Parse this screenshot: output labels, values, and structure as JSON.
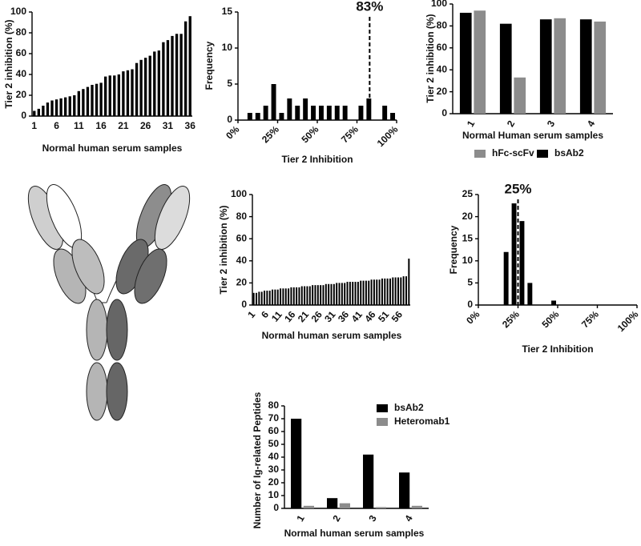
{
  "chart_data": [
    {
      "type": "bar",
      "x_label": "Normal human serum samples",
      "y_label": "Tier 2 inhibition (%)",
      "categories": [
        "1",
        null,
        null,
        null,
        null,
        "6",
        null,
        null,
        null,
        null,
        "11",
        null,
        null,
        null,
        null,
        "16",
        null,
        null,
        null,
        null,
        "21",
        null,
        null,
        null,
        null,
        "26",
        null,
        null,
        null,
        null,
        "31",
        null,
        null,
        null,
        null,
        "36"
      ],
      "values": [
        5,
        7,
        10,
        13,
        15,
        16,
        17,
        18,
        19,
        20,
        24,
        26,
        28,
        30,
        31,
        32,
        38,
        39,
        39,
        40,
        43,
        44,
        45,
        51,
        54,
        56,
        58,
        62,
        63,
        71,
        73,
        77,
        79,
        79,
        91,
        96
      ],
      "color": "#000000",
      "ylim": [
        0,
        100
      ],
      "yticks": [
        0,
        20,
        40,
        60,
        80,
        100
      ]
    },
    {
      "type": "histogram",
      "x_label": "Tier 2 Inhibition",
      "y_label": "Frequency",
      "bins": [
        0,
        5,
        10,
        15,
        20,
        25,
        30,
        35,
        40,
        45,
        50,
        55,
        60,
        65,
        70,
        75,
        80,
        85,
        90,
        95,
        100
      ],
      "values": [
        0,
        1,
        1,
        2,
        5,
        1,
        3,
        2,
        3,
        2,
        2,
        2,
        2,
        2,
        0,
        2,
        3,
        0,
        2,
        1
      ],
      "color": "#000000",
      "xlim": [
        0,
        100
      ],
      "xticks": [
        {
          "value": 0,
          "label": "0%"
        },
        {
          "value": 25,
          "label": "25%"
        },
        {
          "value": 50,
          "label": "50%"
        },
        {
          "value": 75,
          "label": "75%"
        },
        {
          "value": 100,
          "label": "100%"
        }
      ],
      "ylim": [
        0,
        15
      ],
      "yticks": [
        0,
        5,
        10,
        15
      ],
      "annotation": {
        "text": "83%",
        "x": 83
      }
    },
    {
      "type": "bar",
      "x_label": "Normal Human serum samples",
      "y_label": "Tier 2 inhibition (%)",
      "categories": [
        "1",
        "2",
        "3",
        "4"
      ],
      "series": [
        {
          "name": "bsAb2",
          "color": "#000000",
          "values": [
            92,
            82,
            86,
            86
          ]
        },
        {
          "name": "hFc-scFv",
          "color": "#8c8c8c",
          "values": [
            94,
            33,
            87,
            84
          ]
        }
      ],
      "ylim": [
        0,
        100
      ],
      "yticks": [
        0,
        20,
        40,
        60,
        80,
        100
      ],
      "legend": "bottom"
    },
    {
      "type": "bar",
      "x_label": "Normal human serum samples",
      "y_label": "Tier 2 inhibition (%)",
      "categories": [
        "1",
        null,
        null,
        null,
        null,
        "6",
        null,
        null,
        null,
        null,
        "11",
        null,
        null,
        null,
        null,
        "16",
        null,
        null,
        null,
        null,
        "21",
        null,
        null,
        null,
        null,
        "26",
        null,
        null,
        null,
        null,
        "31",
        null,
        null,
        null,
        null,
        "36",
        null,
        null,
        null,
        null,
        "41",
        null,
        null,
        null,
        null,
        "46",
        null,
        null,
        null,
        null,
        "51",
        null,
        null,
        null,
        null,
        "56",
        null,
        null,
        null
      ],
      "values": [
        11,
        11,
        12,
        12,
        13,
        13,
        13,
        14,
        14,
        14,
        15,
        15,
        15,
        15,
        16,
        16,
        16,
        16,
        17,
        17,
        17,
        17,
        18,
        18,
        18,
        18,
        18,
        19,
        19,
        19,
        19,
        20,
        20,
        20,
        20,
        21,
        21,
        21,
        21,
        21,
        22,
        22,
        22,
        22,
        23,
        23,
        23,
        23,
        24,
        24,
        24,
        24,
        25,
        25,
        25,
        25,
        26,
        26,
        42
      ],
      "color": "#000000",
      "ylim": [
        0,
        100
      ],
      "yticks": [
        0,
        20,
        40,
        60,
        80,
        100
      ]
    },
    {
      "type": "histogram",
      "x_label": "Tier 2 Inhibition",
      "y_label": "Frequency",
      "bins": [
        0,
        5,
        10,
        15,
        20,
        25,
        30,
        35,
        40,
        45,
        50,
        55,
        60,
        65,
        70,
        75,
        80,
        85,
        90,
        95,
        100
      ],
      "values": [
        0,
        0,
        0,
        12,
        23,
        19,
        5,
        0,
        0,
        1,
        0,
        0,
        0,
        0,
        0,
        0,
        0,
        0,
        0,
        0
      ],
      "color": "#000000",
      "xlim": [
        0,
        100
      ],
      "xticks": [
        {
          "value": 0,
          "label": "0%"
        },
        {
          "value": 25,
          "label": "25%"
        },
        {
          "value": 50,
          "label": "50%"
        },
        {
          "value": 75,
          "label": "75%"
        },
        {
          "value": 100,
          "label": "100%"
        }
      ],
      "ylim": [
        0,
        25
      ],
      "yticks": [
        0,
        5,
        10,
        15,
        20,
        25
      ],
      "annotation": {
        "text": "25%",
        "x": 25
      }
    },
    {
      "type": "bar",
      "x_label": "Normal human serum samples",
      "y_label": "Number of Ig-related Peptides",
      "categories": [
        "1",
        "2",
        "3",
        "4"
      ],
      "series": [
        {
          "name": "bsAb2",
          "color": "#000000",
          "values": [
            70,
            8,
            42,
            28
          ]
        },
        {
          "name": "Heteromab1",
          "color": "#8c8c8c",
          "values": [
            2,
            4,
            1,
            2
          ]
        }
      ],
      "ylim": [
        0,
        80
      ],
      "yticks": [
        0,
        10,
        20,
        30,
        40,
        50,
        60,
        70,
        80
      ],
      "legend": "upper right"
    }
  ]
}
